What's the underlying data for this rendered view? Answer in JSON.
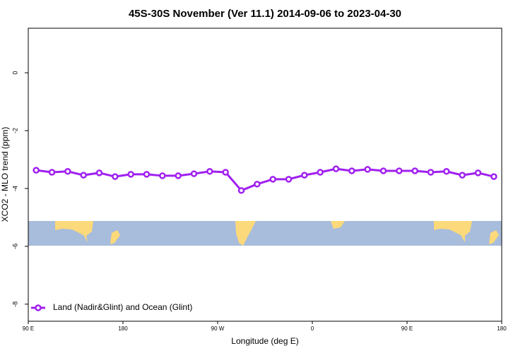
{
  "chart_data": {
    "type": "line",
    "title": "45S-30S November (Ver 11.1)   2014-09-06 to 2023-04-30",
    "x_label": "Longitude (deg E)",
    "y_label": "XCO2 - MLO trend (ppm)",
    "x": [
      97.5,
      112.5,
      127.5,
      142.5,
      157.5,
      172.5,
      187.5,
      202.5,
      217.5,
      232.5,
      247.5,
      262.5,
      277.5,
      292.5,
      307.5,
      322.5,
      337.5,
      352.5,
      367.5,
      382.5,
      397.5,
      412.5,
      427.5,
      442.5,
      457.5,
      472.5,
      487.5,
      502.5,
      517.5,
      532.5
    ],
    "series": [
      {
        "name": "Land (Nadir&Glint) and Ocean (Glint)",
        "color": "#a020f0",
        "values": [
          -3.37,
          -3.44,
          -3.41,
          -3.54,
          -3.46,
          -3.59,
          -3.51,
          -3.51,
          -3.56,
          -3.56,
          -3.49,
          -3.41,
          -3.44,
          -4.07,
          -3.85,
          -3.68,
          -3.68,
          -3.54,
          -3.44,
          -3.32,
          -3.39,
          -3.34,
          -3.39,
          -3.39,
          -3.39,
          -3.44,
          -3.41,
          -3.54,
          -3.46,
          -3.59
        ]
      }
    ],
    "xlim": [
      90,
      540
    ],
    "xticks": [
      {
        "value": 90,
        "label": "90 E"
      },
      {
        "value": 180,
        "label": "180"
      },
      {
        "value": 270,
        "label": "90 W"
      },
      {
        "value": 360,
        "label": "0"
      },
      {
        "value": 450,
        "label": "90 E"
      },
      {
        "value": 540,
        "label": "180"
      }
    ],
    "ylim": [
      -8.59,
      1.54
    ],
    "yticks": [
      0,
      -2,
      -4,
      -6,
      -8
    ],
    "legend": "bottom-left"
  }
}
